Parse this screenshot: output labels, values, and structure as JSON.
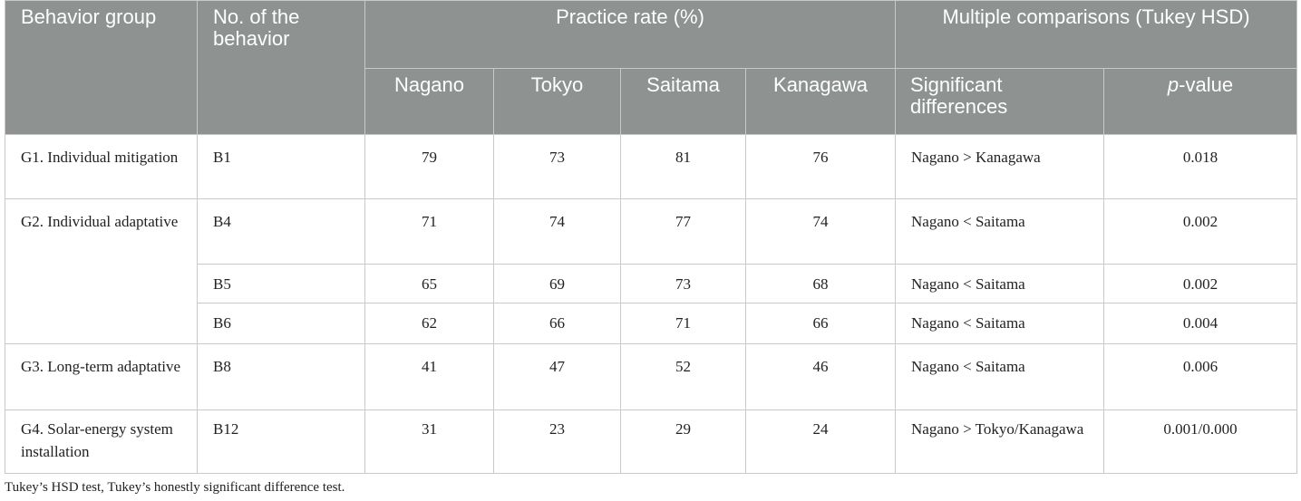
{
  "header": {
    "behavior_group": "Behavior group",
    "behavior_no": "No. of the behavior",
    "practice_rate": "Practice rate (%)",
    "multiple_comparisons": "Multiple comparisons (Tukey HSD)",
    "nagano": "Nagano",
    "tokyo": "Tokyo",
    "saitama": "Saitama",
    "kanagawa": "Kanagawa",
    "significant_differences": "Significant differences",
    "p_value_prefix": "p",
    "p_value_suffix": "-value"
  },
  "rows": [
    {
      "group": "G1. Individual mitigation",
      "behavior": "B1",
      "nagano": "79",
      "tokyo": "73",
      "saitama": "81",
      "kanagawa": "76",
      "difference": "Nagano > Kanagawa",
      "p_value": "0.018"
    },
    {
      "group": "G2. Individual adaptative",
      "behavior": "B4",
      "nagano": "71",
      "tokyo": "74",
      "saitama": "77",
      "kanagawa": "74",
      "difference": "Nagano < Saitama",
      "p_value": "0.002"
    },
    {
      "group": "",
      "behavior": "B5",
      "nagano": "65",
      "tokyo": "69",
      "saitama": "73",
      "kanagawa": "68",
      "difference": "Nagano < Saitama",
      "p_value": "0.002"
    },
    {
      "group": "",
      "behavior": "B6",
      "nagano": "62",
      "tokyo": "66",
      "saitama": "71",
      "kanagawa": "66",
      "difference": "Nagano < Saitama",
      "p_value": "0.004"
    },
    {
      "group": "G3. Long-term adaptative",
      "behavior": "B8",
      "nagano": "41",
      "tokyo": "47",
      "saitama": "52",
      "kanagawa": "46",
      "difference": "Nagano < Saitama",
      "p_value": "0.006"
    },
    {
      "group": "G4. Solar-energy system installation",
      "behavior": "B12",
      "nagano": "31",
      "tokyo": "23",
      "saitama": "29",
      "kanagawa": "24",
      "difference": "Nagano > Tokyo/Kanagawa",
      "p_value": "0.001/0.000"
    }
  ],
  "footnote": "Tukey’s HSD test, Tukey’s honestly significant difference test."
}
